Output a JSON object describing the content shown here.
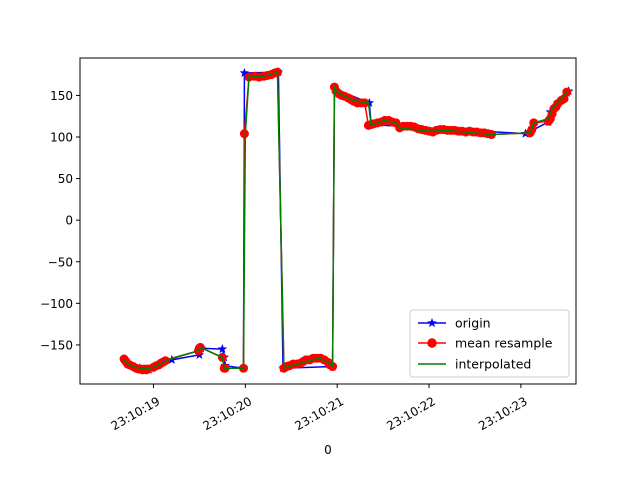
{
  "chart_data": {
    "type": "line",
    "title": "",
    "xlabel": "0",
    "ylabel": "",
    "x_ticks": [
      "23:10:19",
      "23:10:20",
      "23:10:21",
      "23:10:22",
      "23:10:23"
    ],
    "x_tick_seconds": [
      19,
      20,
      21,
      22,
      23
    ],
    "xlim": [
      18.2,
      23.6
    ],
    "ylim": [
      -197,
      195
    ],
    "y_ticks": [
      150,
      100,
      50,
      0,
      -50,
      -100,
      -150
    ],
    "y_tick_labels": [
      "150",
      "100",
      "50",
      "0",
      "−50",
      "−100",
      "−150"
    ],
    "grid": false,
    "legend_position": "lower-right",
    "series": [
      {
        "name": "origin",
        "color": "#0000ff",
        "marker": "star",
        "x": [
          18.68,
          18.72,
          18.85,
          18.95,
          19.2,
          19.5,
          19.52,
          19.75,
          19.77,
          19.78,
          19.98,
          19.99,
          20.36,
          20.41,
          20.95,
          20.97,
          21.35,
          21.37,
          23.05,
          23.3,
          23.32,
          23.5,
          23.52
        ],
        "y": [
          -167,
          -172,
          -178,
          -180,
          -168,
          -162,
          -154,
          -155,
          -165,
          -175,
          -178,
          177,
          178,
          -178,
          -176,
          158,
          141,
          115,
          104,
          118,
          130,
          153,
          155
        ]
      },
      {
        "name": "mean resample",
        "color": "#ff0000",
        "edge_color": "#008000",
        "marker": "circle",
        "x": [
          18.68,
          18.7,
          18.72,
          18.74,
          18.78,
          18.81,
          18.84,
          18.86,
          18.88,
          18.9,
          18.92,
          18.94,
          19.0,
          19.03,
          19.06,
          19.08,
          19.1,
          19.13,
          19.49,
          19.5,
          19.51,
          19.75,
          19.77,
          19.78,
          19.98,
          19.99,
          20.04,
          20.1,
          20.15,
          20.2,
          20.24,
          20.28,
          20.32,
          20.35,
          20.42,
          20.45,
          20.48,
          20.52,
          20.56,
          20.6,
          20.63,
          20.66,
          20.7,
          20.74,
          20.78,
          20.82,
          20.86,
          20.9,
          20.92,
          20.95,
          20.97,
          20.99,
          21.02,
          21.05,
          21.08,
          21.12,
          21.15,
          21.18,
          21.22,
          21.26,
          21.3,
          21.34,
          21.37,
          21.4,
          21.44,
          21.48,
          21.52,
          21.56,
          21.6,
          21.64,
          21.68,
          21.72,
          21.76,
          21.8,
          21.84,
          21.88,
          21.92,
          21.96,
          22.0,
          22.04,
          22.08,
          22.12,
          22.16,
          22.2,
          22.24,
          22.28,
          22.32,
          22.36,
          22.4,
          22.44,
          22.48,
          22.52,
          22.56,
          22.6,
          22.64,
          22.68,
          23.1,
          23.12,
          23.14,
          23.3,
          23.32,
          23.34,
          23.36,
          23.38,
          23.4,
          23.44,
          23.47,
          23.5
        ],
        "y": [
          -167,
          -170,
          -173,
          -174,
          -176,
          -178,
          -179,
          -179,
          -180,
          -179,
          -180,
          -179,
          -177,
          -175,
          -174,
          -172,
          -171,
          -169,
          -157,
          -154,
          -153,
          -165,
          -178,
          -178,
          -178,
          104,
          172,
          173,
          172,
          173,
          174,
          175,
          177,
          178,
          -178,
          -176,
          -175,
          -173,
          -173,
          -172,
          -170,
          -168,
          -168,
          -166,
          -166,
          -166,
          -168,
          -171,
          -174,
          -176,
          160,
          155,
          152,
          150,
          149,
          147,
          145,
          143,
          141,
          141,
          141,
          114,
          115,
          116,
          117,
          118,
          120,
          120,
          118,
          117,
          111,
          113,
          113,
          113,
          112,
          110,
          109,
          108,
          107,
          106,
          108,
          109,
          109,
          108,
          108,
          108,
          107,
          107,
          106,
          107,
          106,
          106,
          105,
          105,
          104,
          103,
          105,
          109,
          117,
          119,
          122,
          128,
          134,
          136,
          140,
          144,
          146,
          154
        ]
      },
      {
        "name": "interpolated",
        "color": "#008000",
        "marker": "none",
        "x": [
          18.68,
          18.72,
          18.8,
          18.9,
          19.0,
          19.2,
          19.49,
          19.51,
          19.75,
          19.77,
          19.98,
          20.0,
          20.04,
          20.2,
          20.35,
          20.42,
          20.6,
          20.8,
          20.9,
          20.95,
          20.97,
          21.02,
          21.15,
          21.3,
          21.34,
          21.37,
          21.52,
          21.6,
          21.64,
          21.68,
          22.0,
          22.2,
          22.68,
          23.1,
          23.14,
          23.3,
          23.34,
          23.44,
          23.5
        ],
        "y": [
          -167,
          -173,
          -177,
          -179,
          -177,
          -166,
          -157,
          -153,
          -165,
          -178,
          -178,
          104,
          172,
          173,
          178,
          -178,
          -172,
          -166,
          -171,
          -176,
          160,
          152,
          145,
          141,
          141,
          114,
          120,
          118,
          117,
          111,
          107,
          108,
          103,
          105,
          117,
          122,
          134,
          146,
          154
        ]
      }
    ]
  }
}
